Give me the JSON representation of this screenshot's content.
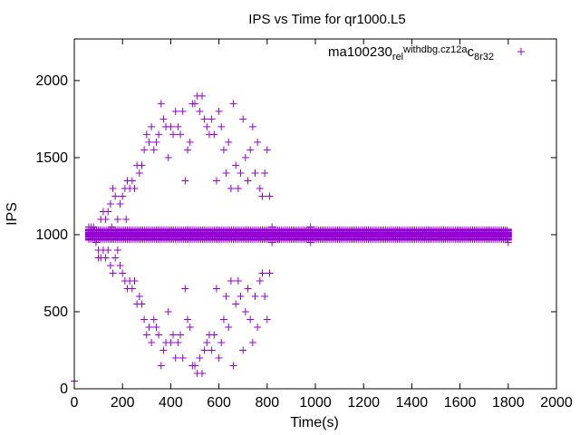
{
  "chart_data": {
    "type": "scatter",
    "title": "IPS vs Time for qr1000.L5",
    "xlabel": "Time(s)",
    "ylabel": "IPS",
    "xlim": [
      0,
      2000
    ],
    "ylim": [
      0,
      2270
    ],
    "xticks": [
      0,
      200,
      400,
      600,
      800,
      1000,
      1200,
      1400,
      1600,
      1800,
      2000
    ],
    "yticks": [
      0,
      500,
      1000,
      1500,
      2000
    ],
    "grid": false,
    "legend_position": "top-right",
    "marker": "plus",
    "series": [
      {
        "name": "ma100230_rel_withdbg.cz12a_c8r32",
        "name_parts": {
          "p1": "ma100230",
          "p2": "rel",
          "p3": "withdbg.cz12a",
          "p4": "c",
          "p5": "8r32"
        },
        "color": "#9400d3",
        "band_x": [
          60,
          1800
        ],
        "band_values": [
          970,
          990,
          1000,
          1010,
          1030
        ],
        "points": [
          [
            0,
            50
          ],
          [
            60,
            1050
          ],
          [
            70,
            1050
          ],
          [
            80,
            1050
          ],
          [
            90,
            950
          ],
          [
            100,
            900
          ],
          [
            100,
            850
          ],
          [
            110,
            1100
          ],
          [
            110,
            850
          ],
          [
            120,
            1150
          ],
          [
            120,
            900
          ],
          [
            130,
            1100
          ],
          [
            130,
            850
          ],
          [
            140,
            1150
          ],
          [
            140,
            900
          ],
          [
            150,
            1200
          ],
          [
            150,
            800
          ],
          [
            155,
            1050
          ],
          [
            160,
            1300
          ],
          [
            160,
            750
          ],
          [
            170,
            1250
          ],
          [
            170,
            850
          ],
          [
            180,
            1100
          ],
          [
            180,
            900
          ],
          [
            190,
            1200
          ],
          [
            190,
            800
          ],
          [
            200,
            1250
          ],
          [
            200,
            750
          ],
          [
            210,
            1300
          ],
          [
            210,
            700
          ],
          [
            215,
            1100
          ],
          [
            220,
            1350
          ],
          [
            220,
            650
          ],
          [
            230,
            1300
          ],
          [
            230,
            700
          ],
          [
            240,
            1350
          ],
          [
            240,
            650
          ],
          [
            250,
            1300
          ],
          [
            250,
            700
          ],
          [
            260,
            1450
          ],
          [
            260,
            550
          ],
          [
            270,
            1400
          ],
          [
            270,
            600
          ],
          [
            280,
            1450
          ],
          [
            280,
            550
          ],
          [
            290,
            1550
          ],
          [
            290,
            450
          ],
          [
            300,
            1650
          ],
          [
            300,
            350
          ],
          [
            310,
            1600
          ],
          [
            310,
            400
          ],
          [
            320,
            1700
          ],
          [
            320,
            300
          ],
          [
            330,
            1550
          ],
          [
            330,
            450
          ],
          [
            340,
            1600
          ],
          [
            340,
            400
          ],
          [
            350,
            1650
          ],
          [
            350,
            350
          ],
          [
            360,
            1850
          ],
          [
            360,
            150
          ],
          [
            370,
            1750
          ],
          [
            370,
            250
          ],
          [
            380,
            1700
          ],
          [
            380,
            300
          ],
          [
            390,
            1500
          ],
          [
            390,
            500
          ],
          [
            400,
            1700
          ],
          [
            400,
            300
          ],
          [
            410,
            1650
          ],
          [
            410,
            350
          ],
          [
            420,
            1800
          ],
          [
            420,
            200
          ],
          [
            430,
            1700
          ],
          [
            430,
            300
          ],
          [
            440,
            1650
          ],
          [
            440,
            350
          ],
          [
            450,
            1800
          ],
          [
            450,
            200
          ],
          [
            460,
            1350
          ],
          [
            460,
            650
          ],
          [
            470,
            1550
          ],
          [
            470,
            450
          ],
          [
            480,
            1600
          ],
          [
            480,
            400
          ],
          [
            490,
            1850
          ],
          [
            490,
            150
          ],
          [
            500,
            1850
          ],
          [
            500,
            150
          ],
          [
            510,
            1900
          ],
          [
            510,
            100
          ],
          [
            520,
            1800
          ],
          [
            520,
            200
          ],
          [
            530,
            1900
          ],
          [
            530,
            100
          ],
          [
            540,
            1750
          ],
          [
            540,
            250
          ],
          [
            550,
            1700
          ],
          [
            550,
            300
          ],
          [
            560,
            1650
          ],
          [
            560,
            350
          ],
          [
            570,
            1750
          ],
          [
            570,
            250
          ],
          [
            580,
            1650
          ],
          [
            580,
            350
          ],
          [
            590,
            1350
          ],
          [
            590,
            650
          ],
          [
            600,
            1800
          ],
          [
            600,
            200
          ],
          [
            610,
            1700
          ],
          [
            610,
            300
          ],
          [
            620,
            1550
          ],
          [
            620,
            450
          ],
          [
            630,
            1400
          ],
          [
            630,
            600
          ],
          [
            640,
            1600
          ],
          [
            640,
            400
          ],
          [
            650,
            1300
          ],
          [
            650,
            700
          ],
          [
            660,
            1850
          ],
          [
            660,
            150
          ],
          [
            670,
            1450
          ],
          [
            670,
            550
          ],
          [
            680,
            1300
          ],
          [
            680,
            700
          ],
          [
            690,
            1400
          ],
          [
            690,
            600
          ],
          [
            700,
            1750
          ],
          [
            700,
            250
          ],
          [
            710,
            1500
          ],
          [
            710,
            500
          ],
          [
            720,
            1350
          ],
          [
            720,
            650
          ],
          [
            730,
            1550
          ],
          [
            730,
            450
          ],
          [
            740,
            1700
          ],
          [
            740,
            300
          ],
          [
            750,
            1400
          ],
          [
            750,
            600
          ],
          [
            760,
            1600
          ],
          [
            760,
            400
          ],
          [
            770,
            1300
          ],
          [
            770,
            700
          ],
          [
            780,
            1250
          ],
          [
            780,
            750
          ],
          [
            790,
            1400
          ],
          [
            790,
            600
          ],
          [
            800,
            1550
          ],
          [
            800,
            450
          ],
          [
            810,
            1250
          ],
          [
            810,
            750
          ],
          [
            820,
            1050
          ],
          [
            820,
            950
          ],
          [
            850,
            970
          ],
          [
            980,
            1050
          ],
          [
            980,
            950
          ],
          [
            1800,
            950
          ]
        ]
      }
    ]
  }
}
